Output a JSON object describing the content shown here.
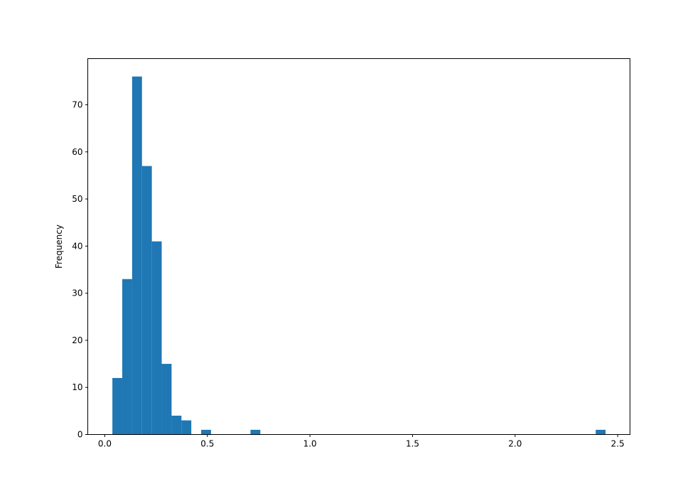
{
  "chart_data": {
    "type": "bar",
    "subtype": "histogram",
    "title": "",
    "xlabel": "",
    "ylabel": "Frequency",
    "bin_range": [
      0.037,
      2.441
    ],
    "bin_count": 50,
    "counts": [
      12,
      33,
      76,
      57,
      41,
      15,
      4,
      3,
      0,
      1,
      0,
      0,
      0,
      0,
      1,
      0,
      0,
      0,
      0,
      0,
      0,
      0,
      0,
      0,
      0,
      0,
      0,
      0,
      0,
      0,
      0,
      0,
      0,
      0,
      0,
      0,
      0,
      0,
      0,
      0,
      0,
      0,
      0,
      0,
      0,
      0,
      0,
      0,
      0,
      1
    ],
    "xlim": [
      -0.083,
      2.56
    ],
    "ylim": [
      0,
      79.8
    ],
    "xticks": [
      0.0,
      0.5,
      1.0,
      1.5,
      2.0,
      2.5
    ],
    "xtick_labels": [
      "0.0",
      "0.5",
      "1.0",
      "1.5",
      "2.0",
      "2.5"
    ],
    "yticks": [
      0,
      10,
      20,
      30,
      40,
      50,
      60,
      70
    ],
    "ytick_labels": [
      "0",
      "10",
      "20",
      "30",
      "40",
      "50",
      "60",
      "70"
    ],
    "grid": false,
    "bar_color": "#1f77b4"
  }
}
